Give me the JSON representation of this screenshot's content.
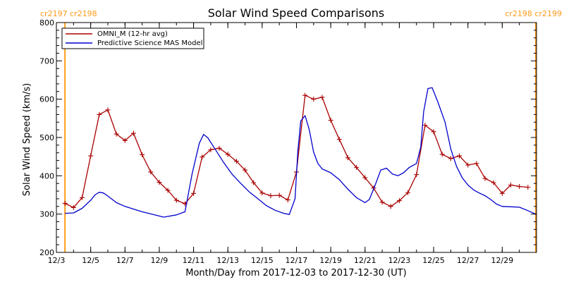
{
  "chart_data": {
    "type": "line",
    "title": "Solar Wind Speed Comparisons",
    "xlabel": "Month/Day from 2017-12-03 to 2017-12-30 (UT)",
    "ylabel": "Solar Wind Speed (km/s)",
    "xlim": [
      "2017-12-03",
      "2017-12-31"
    ],
    "ylim": [
      200,
      800
    ],
    "x_ticks": [
      {
        "date": "2017-12-03",
        "label": "12/3"
      },
      {
        "date": "2017-12-05",
        "label": "12/5"
      },
      {
        "date": "2017-12-07",
        "label": "12/7"
      },
      {
        "date": "2017-12-09",
        "label": "12/9"
      },
      {
        "date": "2017-12-11",
        "label": "12/11"
      },
      {
        "date": "2017-12-13",
        "label": "12/13"
      },
      {
        "date": "2017-12-15",
        "label": "12/15"
      },
      {
        "date": "2017-12-17",
        "label": "12/17"
      },
      {
        "date": "2017-12-19",
        "label": "12/19"
      },
      {
        "date": "2017-12-21",
        "label": "12/21"
      },
      {
        "date": "2017-12-23",
        "label": "12/23"
      },
      {
        "date": "2017-12-25",
        "label": "12/25"
      },
      {
        "date": "2017-12-27",
        "label": "12/27"
      },
      {
        "date": "2017-12-29",
        "label": "12/29"
      }
    ],
    "y_ticks": [
      200,
      300,
      400,
      500,
      600,
      700,
      800
    ],
    "grid": false,
    "legend_position": "top-left",
    "carrington": {
      "left_label": "cr2197 cr2198",
      "right_label": "cr2198 cr2199",
      "left_date": "2017-12-03 12:00",
      "right_date": "2017-12-30 23:00",
      "color": "#ff9a1a"
    },
    "series": [
      {
        "name": "OMNI_M (12-hr avg)",
        "color": "#aa0000",
        "marker": "plus",
        "points": [
          [
            "2017-12-03 12:00",
            328
          ],
          [
            "2017-12-04 00:00",
            317
          ],
          [
            "2017-12-04 12:00",
            343
          ],
          [
            "2017-12-05 00:00",
            452
          ],
          [
            "2017-12-05 12:00",
            560
          ],
          [
            "2017-12-06 00:00",
            572
          ],
          [
            "2017-12-06 12:00",
            509
          ],
          [
            "2017-12-07 00:00",
            492
          ],
          [
            "2017-12-07 12:00",
            511
          ],
          [
            "2017-12-08 00:00",
            455
          ],
          [
            "2017-12-08 12:00",
            410
          ],
          [
            "2017-12-09 00:00",
            383
          ],
          [
            "2017-12-09 12:00",
            362
          ],
          [
            "2017-12-10 00:00",
            336
          ],
          [
            "2017-12-10 12:00",
            327
          ],
          [
            "2017-12-11 00:00",
            354
          ],
          [
            "2017-12-11 12:00",
            449
          ],
          [
            "2017-12-12 00:00",
            468
          ],
          [
            "2017-12-12 12:00",
            472
          ],
          [
            "2017-12-13 00:00",
            456
          ],
          [
            "2017-12-13 12:00",
            438
          ],
          [
            "2017-12-14 00:00",
            415
          ],
          [
            "2017-12-14 12:00",
            382
          ],
          [
            "2017-12-15 00:00",
            355
          ],
          [
            "2017-12-15 12:00",
            348
          ],
          [
            "2017-12-16 00:00",
            349
          ],
          [
            "2017-12-16 12:00",
            337
          ],
          [
            "2017-12-17 00:00",
            410
          ],
          [
            "2017-12-17 12:00",
            610
          ],
          [
            "2017-12-18 00:00",
            600
          ],
          [
            "2017-12-18 12:00",
            605
          ],
          [
            "2017-12-19 00:00",
            545
          ],
          [
            "2017-12-19 12:00",
            495
          ],
          [
            "2017-12-20 00:00",
            447
          ],
          [
            "2017-12-20 12:00",
            422
          ],
          [
            "2017-12-21 00:00",
            395
          ],
          [
            "2017-12-21 12:00",
            368
          ],
          [
            "2017-12-22 00:00",
            331
          ],
          [
            "2017-12-22 12:00",
            320
          ],
          [
            "2017-12-23 00:00",
            335
          ],
          [
            "2017-12-23 12:00",
            356
          ],
          [
            "2017-12-24 00:00",
            403
          ],
          [
            "2017-12-24 12:00",
            532
          ],
          [
            "2017-12-25 00:00",
            515
          ],
          [
            "2017-12-25 12:00",
            456
          ],
          [
            "2017-12-26 00:00",
            445
          ],
          [
            "2017-12-26 12:00",
            452
          ],
          [
            "2017-12-27 00:00",
            428
          ],
          [
            "2017-12-27 12:00",
            432
          ],
          [
            "2017-12-28 00:00",
            393
          ],
          [
            "2017-12-28 12:00",
            382
          ],
          [
            "2017-12-29 00:00",
            354
          ],
          [
            "2017-12-29 12:00",
            376
          ],
          [
            "2017-12-30 00:00",
            372
          ],
          [
            "2017-12-30 12:00",
            370
          ]
        ]
      },
      {
        "name": "Predictive Science MAS Model",
        "color": "#0000cc",
        "marker": "none",
        "points": [
          [
            "2017-12-03 12:00",
            302
          ],
          [
            "2017-12-04 00:00",
            303
          ],
          [
            "2017-12-04 12:00",
            315
          ],
          [
            "2017-12-05 00:00",
            336
          ],
          [
            "2017-12-05 06:00",
            350
          ],
          [
            "2017-12-05 12:00",
            357
          ],
          [
            "2017-12-05 18:00",
            355
          ],
          [
            "2017-12-06 00:00",
            347
          ],
          [
            "2017-12-06 12:00",
            330
          ],
          [
            "2017-12-07 00:00",
            320
          ],
          [
            "2017-12-08 00:00",
            306
          ],
          [
            "2017-12-09 00:00",
            295
          ],
          [
            "2017-12-09 06:00",
            292
          ],
          [
            "2017-12-10 00:00",
            298
          ],
          [
            "2017-12-10 12:00",
            306
          ],
          [
            "2017-12-10 22:00",
            405
          ],
          [
            "2017-12-11 08:00",
            485
          ],
          [
            "2017-12-11 14:00",
            508
          ],
          [
            "2017-12-11 20:00",
            499
          ],
          [
            "2017-12-12 06:00",
            470
          ],
          [
            "2017-12-12 18:00",
            435
          ],
          [
            "2017-12-13 06:00",
            404
          ],
          [
            "2017-12-13 18:00",
            380
          ],
          [
            "2017-12-14 06:00",
            358
          ],
          [
            "2017-12-14 18:00",
            340
          ],
          [
            "2017-12-15 06:00",
            322
          ],
          [
            "2017-12-15 18:00",
            310
          ],
          [
            "2017-12-16 06:00",
            302
          ],
          [
            "2017-12-16 14:00",
            299
          ],
          [
            "2017-12-16 22:00",
            340
          ],
          [
            "2017-12-17 02:00",
            465
          ],
          [
            "2017-12-17 06:00",
            543
          ],
          [
            "2017-12-17 12:00",
            557
          ],
          [
            "2017-12-17 18:00",
            520
          ],
          [
            "2017-12-18 00:00",
            462
          ],
          [
            "2017-12-18 06:00",
            432
          ],
          [
            "2017-12-18 12:00",
            418
          ],
          [
            "2017-12-19 00:00",
            408
          ],
          [
            "2017-12-19 12:00",
            390
          ],
          [
            "2017-12-20 00:00",
            365
          ],
          [
            "2017-12-20 12:00",
            343
          ],
          [
            "2017-12-21 00:00",
            330
          ],
          [
            "2017-12-21 06:00",
            338
          ],
          [
            "2017-12-21 14:00",
            375
          ],
          [
            "2017-12-21 22:00",
            415
          ],
          [
            "2017-12-22 06:00",
            420
          ],
          [
            "2017-12-22 14:00",
            405
          ],
          [
            "2017-12-22 22:00",
            400
          ],
          [
            "2017-12-23 06:00",
            408
          ],
          [
            "2017-12-23 14:00",
            422
          ],
          [
            "2017-12-24 00:00",
            432
          ],
          [
            "2017-12-24 06:00",
            475
          ],
          [
            "2017-12-24 10:00",
            567
          ],
          [
            "2017-12-24 16:00",
            628
          ],
          [
            "2017-12-24 22:00",
            630
          ],
          [
            "2017-12-25 06:00",
            592
          ],
          [
            "2017-12-25 16:00",
            540
          ],
          [
            "2017-12-26 00:00",
            470
          ],
          [
            "2017-12-26 08:00",
            425
          ],
          [
            "2017-12-26 16:00",
            395
          ],
          [
            "2017-12-27 00:00",
            376
          ],
          [
            "2017-12-27 08:00",
            363
          ],
          [
            "2017-12-27 16:00",
            355
          ],
          [
            "2017-12-28 00:00",
            348
          ],
          [
            "2017-12-28 08:00",
            338
          ],
          [
            "2017-12-28 16:00",
            326
          ],
          [
            "2017-12-29 00:00",
            320
          ],
          [
            "2017-12-29 12:00",
            319
          ],
          [
            "2017-12-30 00:00",
            318
          ],
          [
            "2017-12-30 12:00",
            309
          ],
          [
            "2017-12-31 00:00",
            299
          ]
        ]
      }
    ]
  }
}
